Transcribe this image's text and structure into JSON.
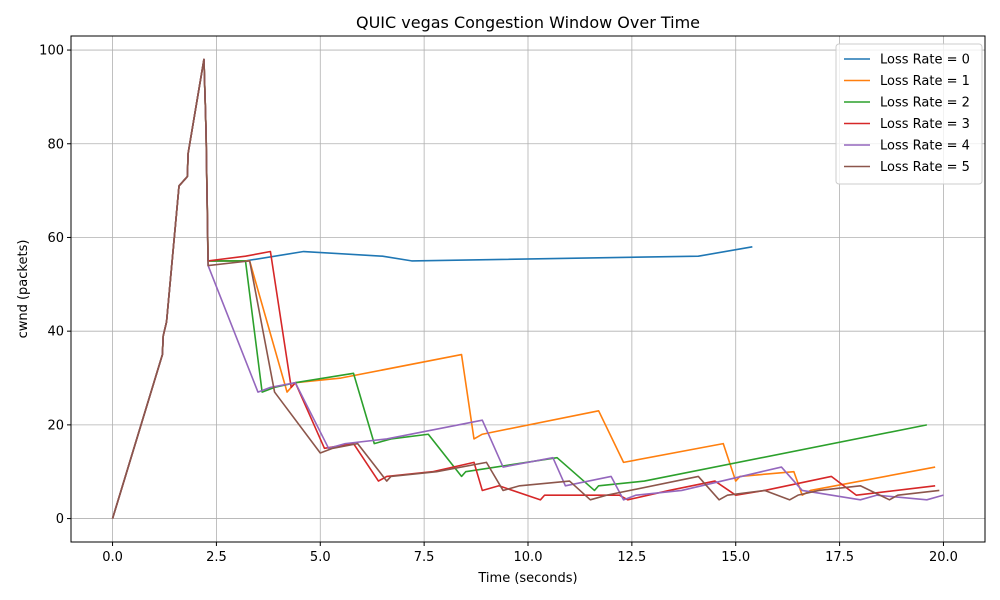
{
  "chart_data": {
    "type": "line",
    "title": "QUIC vegas Congestion Window Over Time",
    "xlabel": "Time (seconds)",
    "ylabel": "cwnd (packets)",
    "xlim": [
      -1,
      21
    ],
    "ylim": [
      -5,
      103
    ],
    "xticks": [
      0.0,
      2.5,
      5.0,
      7.5,
      10.0,
      12.5,
      15.0,
      17.5,
      20.0
    ],
    "xtick_labels": [
      "0.0",
      "2.5",
      "5.0",
      "7.5",
      "10.0",
      "12.5",
      "15.0",
      "17.5",
      "20.0"
    ],
    "yticks": [
      0,
      20,
      40,
      60,
      80,
      100
    ],
    "ytick_labels": [
      "0",
      "20",
      "40",
      "60",
      "80",
      "100"
    ],
    "grid": true,
    "legend_position": "top-right",
    "series": [
      {
        "name": "Loss Rate = 0",
        "color": "#1f77b4",
        "points": [
          [
            0,
            0
          ],
          [
            1.2,
            35
          ],
          [
            1.22,
            39
          ],
          [
            1.3,
            42
          ],
          [
            1.6,
            71
          ],
          [
            1.8,
            73
          ],
          [
            1.82,
            78
          ],
          [
            2.2,
            98
          ],
          [
            2.25,
            83
          ],
          [
            2.3,
            55
          ],
          [
            3.2,
            55
          ],
          [
            4.6,
            57
          ],
          [
            6.5,
            56
          ],
          [
            7.2,
            55
          ],
          [
            14.1,
            56
          ],
          [
            15.4,
            58
          ]
        ]
      },
      {
        "name": "Loss Rate = 1",
        "color": "#ff7f0e",
        "points": [
          [
            0,
            0
          ],
          [
            1.2,
            35
          ],
          [
            1.22,
            39
          ],
          [
            1.3,
            42
          ],
          [
            1.6,
            71
          ],
          [
            1.8,
            73
          ],
          [
            1.82,
            78
          ],
          [
            2.2,
            98
          ],
          [
            2.25,
            83
          ],
          [
            2.3,
            55
          ],
          [
            3.3,
            55
          ],
          [
            4.2,
            27
          ],
          [
            4.4,
            29
          ],
          [
            5.5,
            30
          ],
          [
            8.4,
            35
          ],
          [
            8.7,
            17
          ],
          [
            8.9,
            18
          ],
          [
            11.7,
            23
          ],
          [
            12.3,
            12
          ],
          [
            14.7,
            16
          ],
          [
            15.0,
            8
          ],
          [
            15.1,
            9
          ],
          [
            16.4,
            10
          ],
          [
            16.6,
            5
          ],
          [
            16.8,
            6
          ],
          [
            19.8,
            11
          ]
        ]
      },
      {
        "name": "Loss Rate = 2",
        "color": "#2ca02c",
        "points": [
          [
            0,
            0
          ],
          [
            1.2,
            35
          ],
          [
            1.22,
            39
          ],
          [
            1.3,
            42
          ],
          [
            1.6,
            71
          ],
          [
            1.8,
            73
          ],
          [
            1.82,
            78
          ],
          [
            2.2,
            98
          ],
          [
            2.25,
            83
          ],
          [
            2.3,
            55
          ],
          [
            3.2,
            55
          ],
          [
            3.6,
            27
          ],
          [
            3.9,
            28
          ],
          [
            4.4,
            29
          ],
          [
            5.8,
            31
          ],
          [
            6.3,
            16
          ],
          [
            6.7,
            17
          ],
          [
            7.6,
            18
          ],
          [
            8.4,
            9
          ],
          [
            8.5,
            10
          ],
          [
            10.7,
            13
          ],
          [
            11.6,
            6
          ],
          [
            11.7,
            7
          ],
          [
            12.8,
            8
          ],
          [
            19.6,
            20
          ]
        ]
      },
      {
        "name": "Loss Rate = 3",
        "color": "#d62728",
        "points": [
          [
            0,
            0
          ],
          [
            1.2,
            35
          ],
          [
            1.22,
            39
          ],
          [
            1.3,
            42
          ],
          [
            1.6,
            71
          ],
          [
            1.8,
            73
          ],
          [
            1.82,
            78
          ],
          [
            2.2,
            98
          ],
          [
            2.25,
            83
          ],
          [
            2.3,
            55
          ],
          [
            3.2,
            56
          ],
          [
            3.8,
            57
          ],
          [
            4.3,
            28
          ],
          [
            4.4,
            29
          ],
          [
            5.1,
            15
          ],
          [
            5.8,
            16
          ],
          [
            6.4,
            8
          ],
          [
            6.6,
            9
          ],
          [
            7.7,
            10
          ],
          [
            8.7,
            12
          ],
          [
            8.9,
            6
          ],
          [
            9.3,
            7
          ],
          [
            10.3,
            4
          ],
          [
            10.4,
            5
          ],
          [
            12.2,
            5
          ],
          [
            12.4,
            4
          ],
          [
            13.4,
            6
          ],
          [
            14.5,
            8
          ],
          [
            15.0,
            5
          ],
          [
            15.7,
            6
          ],
          [
            17.3,
            9
          ],
          [
            17.9,
            5
          ],
          [
            19.8,
            7
          ]
        ]
      },
      {
        "name": "Loss Rate = 4",
        "color": "#9467bd",
        "points": [
          [
            0,
            0
          ],
          [
            1.2,
            35
          ],
          [
            1.22,
            39
          ],
          [
            1.3,
            42
          ],
          [
            1.6,
            71
          ],
          [
            1.8,
            73
          ],
          [
            1.82,
            78
          ],
          [
            2.2,
            98
          ],
          [
            2.25,
            83
          ],
          [
            2.3,
            54
          ],
          [
            3.5,
            27
          ],
          [
            3.8,
            28
          ],
          [
            4.4,
            29
          ],
          [
            5.2,
            15
          ],
          [
            5.6,
            16
          ],
          [
            6.6,
            17
          ],
          [
            8.9,
            21
          ],
          [
            9.4,
            11
          ],
          [
            10.6,
            13
          ],
          [
            10.9,
            7
          ],
          [
            12.0,
            9
          ],
          [
            12.3,
            4
          ],
          [
            12.6,
            5
          ],
          [
            13.7,
            6
          ],
          [
            16.1,
            11
          ],
          [
            16.6,
            6
          ],
          [
            18.0,
            4
          ],
          [
            18.4,
            5
          ],
          [
            19.6,
            4
          ],
          [
            20.0,
            5
          ]
        ]
      },
      {
        "name": "Loss Rate = 5",
        "color": "#8c564b",
        "points": [
          [
            0,
            0
          ],
          [
            1.2,
            35
          ],
          [
            1.22,
            39
          ],
          [
            1.3,
            42
          ],
          [
            1.6,
            71
          ],
          [
            1.8,
            73
          ],
          [
            1.82,
            78
          ],
          [
            2.2,
            98
          ],
          [
            2.25,
            83
          ],
          [
            2.3,
            54
          ],
          [
            3.3,
            55
          ],
          [
            3.9,
            27
          ],
          [
            5.0,
            14
          ],
          [
            5.3,
            15
          ],
          [
            5.9,
            16
          ],
          [
            6.6,
            8
          ],
          [
            6.7,
            9
          ],
          [
            7.8,
            10
          ],
          [
            9.0,
            12
          ],
          [
            9.4,
            6
          ],
          [
            9.8,
            7
          ],
          [
            11.0,
            8
          ],
          [
            11.5,
            4
          ],
          [
            11.9,
            5
          ],
          [
            14.1,
            9
          ],
          [
            14.6,
            4
          ],
          [
            14.8,
            5
          ],
          [
            15.7,
            6
          ],
          [
            16.3,
            4
          ],
          [
            16.5,
            5
          ],
          [
            17.0,
            6
          ],
          [
            18.0,
            7
          ],
          [
            18.7,
            4
          ],
          [
            18.9,
            5
          ],
          [
            19.9,
            6
          ]
        ]
      }
    ]
  }
}
